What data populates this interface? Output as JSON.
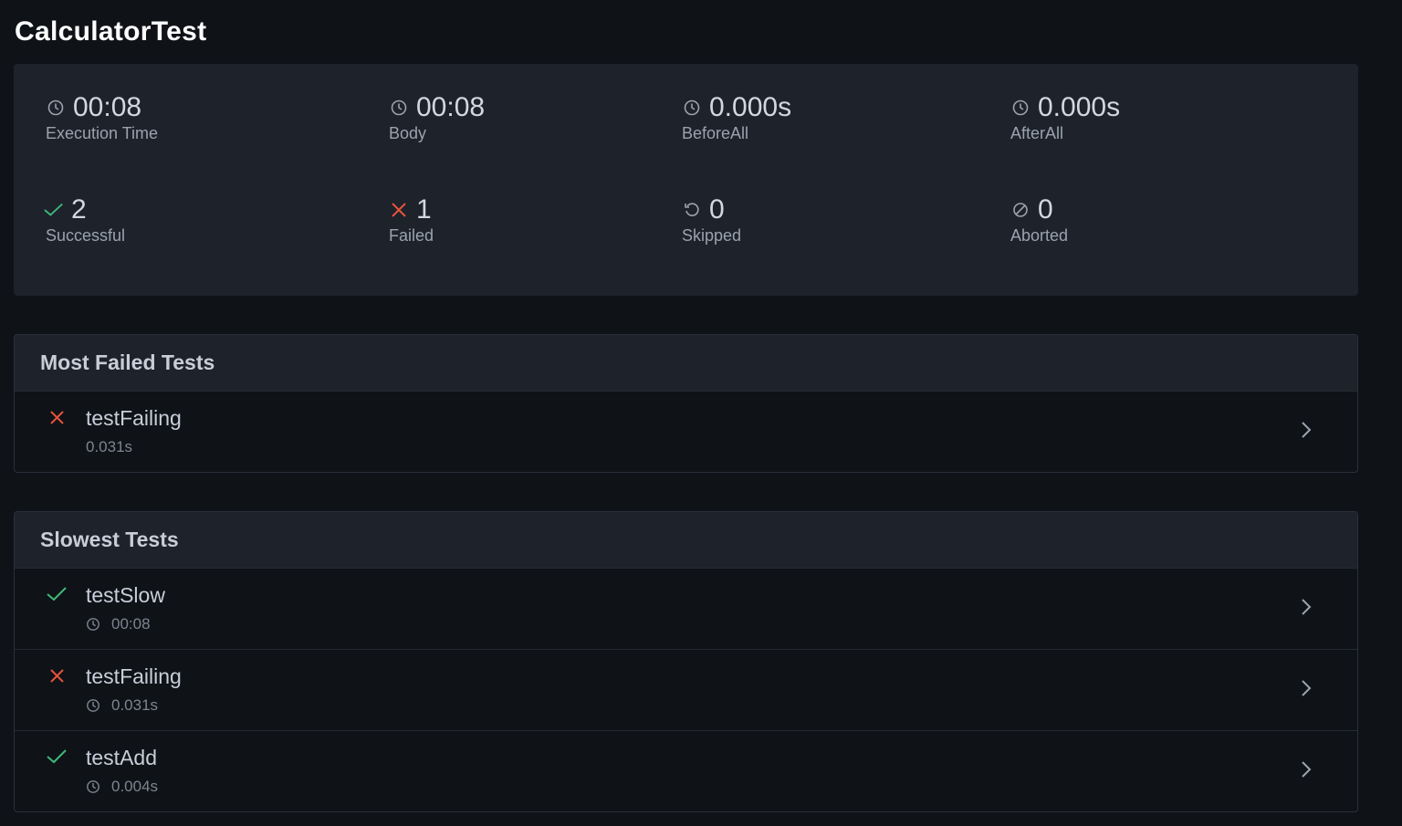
{
  "title": "CalculatorTest",
  "colors": {
    "success": "#3fb97a",
    "failure": "#e5533b",
    "background": "#0f1217",
    "card": "#1d222b"
  },
  "stats": [
    {
      "icon": "clock-icon",
      "value": "00:08",
      "label": "Execution Time"
    },
    {
      "icon": "clock-icon",
      "value": "00:08",
      "label": "Body"
    },
    {
      "icon": "clock-icon",
      "value": "0.000s",
      "label": "BeforeAll"
    },
    {
      "icon": "clock-icon",
      "value": "0.000s",
      "label": "AfterAll"
    },
    {
      "icon": "check-icon",
      "value": "2",
      "label": "Successful"
    },
    {
      "icon": "x-icon",
      "value": "1",
      "label": "Failed"
    },
    {
      "icon": "skip-icon",
      "value": "0",
      "label": "Skipped"
    },
    {
      "icon": "aborted-icon",
      "value": "0",
      "label": "Aborted"
    }
  ],
  "most_failed": {
    "title": "Most Failed Tests",
    "items": [
      {
        "name": "testFailing",
        "duration": "0.031s",
        "status": "failed"
      }
    ]
  },
  "slowest": {
    "title": "Slowest Tests",
    "items": [
      {
        "name": "testSlow",
        "duration": "00:08",
        "status": "passed"
      },
      {
        "name": "testFailing",
        "duration": "0.031s",
        "status": "failed"
      },
      {
        "name": "testAdd",
        "duration": "0.004s",
        "status": "passed"
      }
    ]
  }
}
